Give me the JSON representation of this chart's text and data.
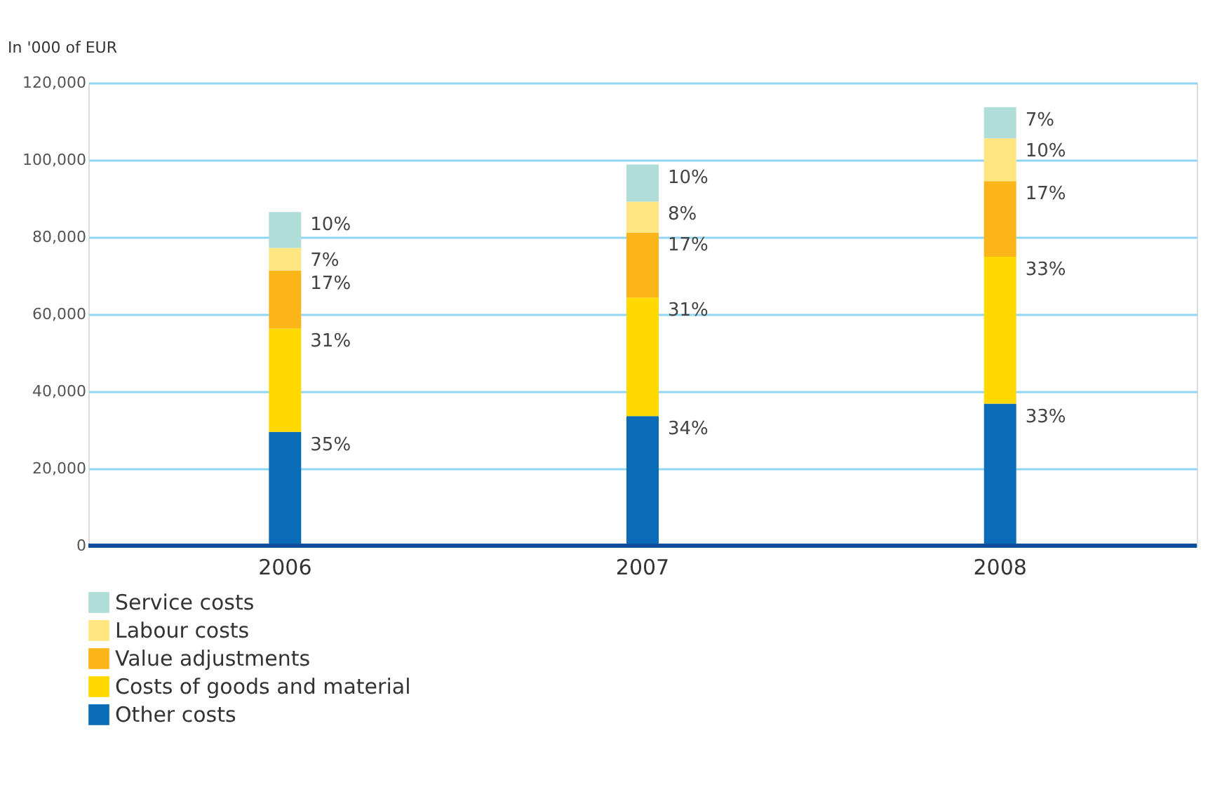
{
  "chart_data": {
    "type": "bar",
    "stacked": true,
    "ylabel": "In '000 of EUR",
    "categories": [
      "2006",
      "2007",
      "2008"
    ],
    "series": [
      {
        "name": "Other costs",
        "color": "#0a6cb6",
        "values": [
          29500,
          33600,
          36800
        ]
      },
      {
        "name": "Costs of goods and material",
        "color": "#ffd900",
        "values": [
          26800,
          30700,
          38100
        ]
      },
      {
        "name": "Value adjustments",
        "color": "#fbb519",
        "values": [
          15000,
          16900,
          19600
        ]
      },
      {
        "name": "Labour costs",
        "color": "#ffe680",
        "values": [
          5900,
          8000,
          11100
        ]
      },
      {
        "name": "Service costs",
        "color": "#b0ddd8",
        "values": [
          9300,
          9600,
          8100
        ]
      }
    ],
    "annotations": [
      {
        "text": "35%",
        "x": "2006",
        "y": 29500
      },
      {
        "text": "31%",
        "x": "2006",
        "y": 56300
      },
      {
        "text": "17%",
        "x": "2006",
        "y": 71300
      },
      {
        "text": "7%",
        "x": "2006",
        "y": 77200
      },
      {
        "text": "10%",
        "x": "2006",
        "y": 86500
      },
      {
        "text": "34%",
        "x": "2007",
        "y": 33600
      },
      {
        "text": "31%",
        "x": "2007",
        "y": 64300
      },
      {
        "text": "17%",
        "x": "2007",
        "y": 81200
      },
      {
        "text": "8%",
        "x": "2007",
        "y": 89200
      },
      {
        "text": "10%",
        "x": "2007",
        "y": 98800
      },
      {
        "text": "33%",
        "x": "2008",
        "y": 36800
      },
      {
        "text": "33%",
        "x": "2008",
        "y": 74900
      },
      {
        "text": "17%",
        "x": "2008",
        "y": 94500
      },
      {
        "text": "10%",
        "x": "2008",
        "y": 105600
      },
      {
        "text": "7%",
        "x": "2008",
        "y": 113700
      }
    ],
    "ylim": [
      0,
      120000
    ],
    "yticks": [
      0,
      {
        "value": 20000,
        "label": "20,000"
      },
      {
        "value": 40000,
        "label": "40,000"
      },
      {
        "value": 60000,
        "label": "60,000"
      },
      {
        "value": 80000,
        "label": "80,000"
      },
      {
        "value": 100000,
        "label": "100,000"
      },
      {
        "value": 120000,
        "label": "120,000"
      }
    ],
    "grid": "y",
    "legend": "bottom left"
  }
}
